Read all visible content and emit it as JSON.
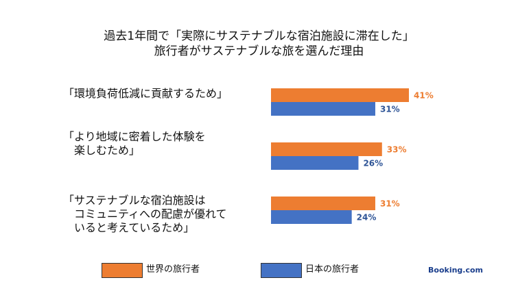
{
  "title_lines": [
    "過去1年間で「実際にサステナブルな宿泊施設に滞在した」",
    "旅行者がサステナブルな旅を選んだ理由"
  ],
  "chart_data": {
    "type": "bar",
    "orientation": "horizontal",
    "categories": [
      "「環境負荷低減に貢献するため」",
      "「より地域に密着した体験を\n　楽しむため」",
      "「サステナブルな宿泊施設は\n　コミュニティへの配慮が優れて\n　いると考えているため」"
    ],
    "series": [
      {
        "name": "世界の旅行者",
        "color": "#ED7D31",
        "values": [
          41,
          33,
          31
        ],
        "labels": [
          "41%",
          "33%",
          "31%"
        ]
      },
      {
        "name": "日本の旅行者",
        "color": "#4472C4",
        "values": [
          31,
          26,
          24
        ],
        "labels": [
          "31%",
          "26%",
          "24%"
        ]
      }
    ],
    "xlim": [
      0,
      41
    ],
    "legend_position": "bottom",
    "grid": false
  },
  "brand": "Booking.com",
  "colors": {
    "orange": "#ED7D31",
    "blue": "#4472C4",
    "orange_label": "#ED7D31",
    "blue_label": "#2F5597"
  }
}
